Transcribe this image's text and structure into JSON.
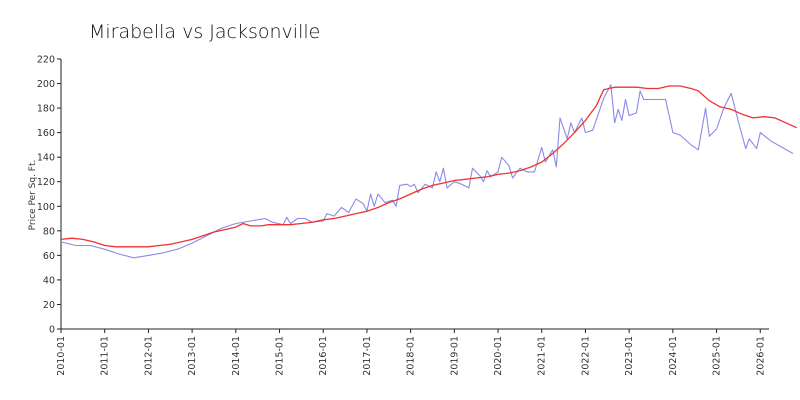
{
  "chart_data": {
    "type": "line",
    "title": "Mirabella vs Jacksonville",
    "xlabel": "",
    "ylabel": "Price Per Sq. Ft.",
    "ylim": [
      0,
      220
    ],
    "yticks": [
      0,
      20,
      40,
      60,
      80,
      100,
      120,
      140,
      160,
      180,
      200,
      220
    ],
    "xticks": [
      "2010-01",
      "2011-01",
      "2012-01",
      "2013-01",
      "2014-01",
      "2015-01",
      "2016-01",
      "2017-01",
      "2018-01",
      "2019-01",
      "2020-01",
      "2021-01",
      "2022-01",
      "2023-01",
      "2024-01",
      "2025-01",
      "2026-01"
    ],
    "grid": false,
    "legend": "none",
    "series": [
      {
        "color": "#8a8ae8",
        "points": [
          [
            "2010-01",
            71
          ],
          [
            "2010-05",
            68
          ],
          [
            "2010-09",
            68
          ],
          [
            "2011-01",
            65
          ],
          [
            "2011-05",
            61
          ],
          [
            "2011-09",
            58
          ],
          [
            "2012-01",
            60
          ],
          [
            "2012-05",
            62
          ],
          [
            "2012-09",
            65
          ],
          [
            "2013-01",
            70
          ],
          [
            "2013-05",
            76
          ],
          [
            "2013-09",
            82
          ],
          [
            "2014-01",
            86
          ],
          [
            "2014-05",
            88
          ],
          [
            "2014-09",
            90
          ],
          [
            "2014-11",
            87
          ],
          [
            "2015-02",
            85
          ],
          [
            "2015-03",
            91
          ],
          [
            "2015-04",
            86
          ],
          [
            "2015-06",
            90
          ],
          [
            "2015-08",
            90
          ],
          [
            "2015-10",
            87
          ],
          [
            "2016-01",
            88
          ],
          [
            "2016-02",
            94
          ],
          [
            "2016-04",
            92
          ],
          [
            "2016-06",
            99
          ],
          [
            "2016-08",
            95
          ],
          [
            "2016-10",
            106
          ],
          [
            "2016-12",
            102
          ],
          [
            "2017-01",
            96
          ],
          [
            "2017-02",
            110
          ],
          [
            "2017-03",
            100
          ],
          [
            "2017-04",
            110
          ],
          [
            "2017-06",
            103
          ],
          [
            "2017-08",
            105
          ],
          [
            "2017-09",
            100
          ],
          [
            "2017-10",
            117
          ],
          [
            "2017-12",
            118
          ],
          [
            "2018-01",
            116
          ],
          [
            "2018-02",
            118
          ],
          [
            "2018-03",
            111
          ],
          [
            "2018-05",
            118
          ],
          [
            "2018-07",
            115
          ],
          [
            "2018-08",
            128
          ],
          [
            "2018-09",
            120
          ],
          [
            "2018-10",
            131
          ],
          [
            "2018-11",
            115
          ],
          [
            "2019-01",
            120
          ],
          [
            "2019-03",
            118
          ],
          [
            "2019-05",
            115
          ],
          [
            "2019-06",
            131
          ],
          [
            "2019-08",
            125
          ],
          [
            "2019-09",
            120
          ],
          [
            "2019-10",
            129
          ],
          [
            "2019-11",
            124
          ],
          [
            "2020-01",
            128
          ],
          [
            "2020-02",
            140
          ],
          [
            "2020-04",
            133
          ],
          [
            "2020-05",
            123
          ],
          [
            "2020-07",
            131
          ],
          [
            "2020-09",
            128
          ],
          [
            "2020-11",
            128
          ],
          [
            "2021-01",
            148
          ],
          [
            "2021-02",
            136
          ],
          [
            "2021-04",
            146
          ],
          [
            "2021-05",
            132
          ],
          [
            "2021-06",
            172
          ],
          [
            "2021-08",
            155
          ],
          [
            "2021-09",
            168
          ],
          [
            "2021-10",
            160
          ],
          [
            "2021-12",
            172
          ],
          [
            "2022-01",
            160
          ],
          [
            "2022-03",
            162
          ],
          [
            "2022-06",
            188
          ],
          [
            "2022-08",
            199
          ],
          [
            "2022-09",
            168
          ],
          [
            "2022-10",
            179
          ],
          [
            "2022-11",
            170
          ],
          [
            "2022-12",
            187
          ],
          [
            "2023-01",
            174
          ],
          [
            "2023-03",
            176
          ],
          [
            "2023-04",
            194
          ],
          [
            "2023-05",
            187
          ],
          [
            "2023-08",
            187
          ],
          [
            "2023-11",
            187
          ],
          [
            "2024-01",
            160
          ],
          [
            "2024-03",
            158
          ],
          [
            "2024-06",
            150
          ],
          [
            "2024-08",
            146
          ],
          [
            "2024-10",
            180
          ],
          [
            "2024-11",
            157
          ],
          [
            "2025-01",
            163
          ],
          [
            "2025-03",
            180
          ],
          [
            "2025-05",
            192
          ],
          [
            "2025-07",
            169
          ],
          [
            "2025-09",
            147
          ],
          [
            "2025-10",
            155
          ],
          [
            "2025-12",
            147
          ],
          [
            "2026-01",
            160
          ],
          [
            "2026-04",
            153
          ],
          [
            "2026-07",
            148
          ],
          [
            "2026-10",
            143
          ]
        ]
      },
      {
        "color": "#ee3333",
        "points": [
          [
            "2010-01",
            73
          ],
          [
            "2010-04",
            74
          ],
          [
            "2010-07",
            73
          ],
          [
            "2010-10",
            71
          ],
          [
            "2011-01",
            68
          ],
          [
            "2011-04",
            67
          ],
          [
            "2011-07",
            67
          ],
          [
            "2011-10",
            67
          ],
          [
            "2012-01",
            67
          ],
          [
            "2012-04",
            68
          ],
          [
            "2012-07",
            69
          ],
          [
            "2012-10",
            71
          ],
          [
            "2013-01",
            73
          ],
          [
            "2013-04",
            76
          ],
          [
            "2013-07",
            79
          ],
          [
            "2013-10",
            81
          ],
          [
            "2014-01",
            83
          ],
          [
            "2014-03",
            86
          ],
          [
            "2014-05",
            84
          ],
          [
            "2014-08",
            84
          ],
          [
            "2014-10",
            85
          ],
          [
            "2015-01",
            85
          ],
          [
            "2015-04",
            85
          ],
          [
            "2015-07",
            86
          ],
          [
            "2015-10",
            87
          ],
          [
            "2016-01",
            89
          ],
          [
            "2016-04",
            90
          ],
          [
            "2016-07",
            92
          ],
          [
            "2016-10",
            94
          ],
          [
            "2017-01",
            96
          ],
          [
            "2017-04",
            99
          ],
          [
            "2017-07",
            103
          ],
          [
            "2017-10",
            106
          ],
          [
            "2018-01",
            110
          ],
          [
            "2018-04",
            114
          ],
          [
            "2018-07",
            117
          ],
          [
            "2018-10",
            119
          ],
          [
            "2019-01",
            121
          ],
          [
            "2019-04",
            122
          ],
          [
            "2019-07",
            123
          ],
          [
            "2019-10",
            124
          ],
          [
            "2020-01",
            126
          ],
          [
            "2020-04",
            127
          ],
          [
            "2020-07",
            129
          ],
          [
            "2020-10",
            132
          ],
          [
            "2021-01",
            136
          ],
          [
            "2021-04",
            143
          ],
          [
            "2021-07",
            151
          ],
          [
            "2021-10",
            160
          ],
          [
            "2022-01",
            170
          ],
          [
            "2022-04",
            182
          ],
          [
            "2022-06",
            195
          ],
          [
            "2022-09",
            197
          ],
          [
            "2022-12",
            197
          ],
          [
            "2023-03",
            197
          ],
          [
            "2023-06",
            196
          ],
          [
            "2023-09",
            196
          ],
          [
            "2023-12",
            198
          ],
          [
            "2024-03",
            198
          ],
          [
            "2024-06",
            196
          ],
          [
            "2024-08",
            194
          ],
          [
            "2024-11",
            186
          ],
          [
            "2025-02",
            181
          ],
          [
            "2025-05",
            179
          ],
          [
            "2025-08",
            175
          ],
          [
            "2025-11",
            172
          ],
          [
            "2026-02",
            173
          ],
          [
            "2026-05",
            172
          ],
          [
            "2026-08",
            168
          ],
          [
            "2026-11",
            164
          ]
        ]
      }
    ]
  }
}
